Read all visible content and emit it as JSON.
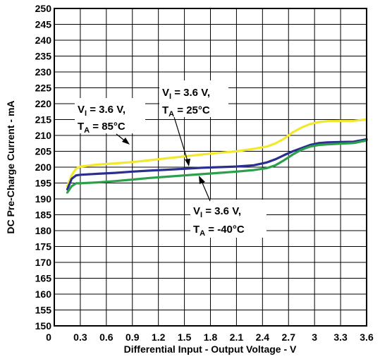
{
  "chart_data": {
    "type": "line",
    "title": "",
    "xlabel": "Differential Input - Output Voltage - V",
    "ylabel": "DC Pre-Charge Current - mA",
    "xlim": [
      0,
      3.6
    ],
    "ylim": [
      150,
      250
    ],
    "x_ticks": [
      "0",
      "0.3",
      "0.6",
      "0.9",
      "1.2",
      "1.5",
      "1.8",
      "2.1",
      "2.4",
      "2.7",
      "3",
      "3.3",
      "3.6"
    ],
    "y_ticks": [
      "250",
      "245",
      "240",
      "235",
      "230",
      "225",
      "220",
      "215",
      "210",
      "205",
      "200",
      "195",
      "190",
      "185",
      "180",
      "175",
      "170",
      "165",
      "160",
      "155",
      "150"
    ],
    "grid": true,
    "legend": "none",
    "series": [
      {
        "color": "#f2e82e",
        "x": [
          0.15,
          0.2,
          0.25,
          0.3,
          0.5,
          0.7,
          0.9,
          1.1,
          1.3,
          1.5,
          1.7,
          1.9,
          2.1,
          2.3,
          2.45,
          2.55,
          2.65,
          2.75,
          2.85,
          2.95,
          3.05,
          3.15,
          3.3,
          3.45,
          3.6
        ],
        "y": [
          194.0,
          197.5,
          199.5,
          200.2,
          200.8,
          201.2,
          201.6,
          202.2,
          202.8,
          203.4,
          204.0,
          204.5,
          205.0,
          205.8,
          206.5,
          207.5,
          209.0,
          211.0,
          212.5,
          213.6,
          214.2,
          214.5,
          214.6,
          214.6,
          215.0
        ]
      },
      {
        "color": "#2a2f8f",
        "x": [
          0.15,
          0.2,
          0.25,
          0.3,
          0.5,
          0.7,
          0.9,
          1.1,
          1.3,
          1.5,
          1.7,
          1.9,
          2.1,
          2.3,
          2.45,
          2.55,
          2.65,
          2.75,
          2.85,
          2.95,
          3.05,
          3.15,
          3.3,
          3.45,
          3.6
        ],
        "y": [
          193.0,
          196.3,
          197.4,
          197.6,
          197.9,
          198.2,
          198.6,
          198.9,
          199.2,
          199.5,
          199.8,
          200.0,
          200.2,
          200.6,
          201.5,
          202.5,
          203.8,
          205.0,
          206.0,
          207.0,
          207.6,
          207.8,
          207.9,
          208.0,
          208.8
        ]
      },
      {
        "color": "#2aa04a",
        "x": [
          0.15,
          0.2,
          0.25,
          0.3,
          0.5,
          0.7,
          0.9,
          1.1,
          1.3,
          1.5,
          1.7,
          1.9,
          2.1,
          2.3,
          2.45,
          2.55,
          2.65,
          2.75,
          2.85,
          2.95,
          3.05,
          3.15,
          3.3,
          3.45,
          3.6
        ],
        "y": [
          192.0,
          194.0,
          194.9,
          194.9,
          195.2,
          195.6,
          196.1,
          196.6,
          197.0,
          197.4,
          197.8,
          198.2,
          198.6,
          199.1,
          199.7,
          200.6,
          202.2,
          204.0,
          205.5,
          206.5,
          207.0,
          207.2,
          207.4,
          207.6,
          208.4
        ]
      }
    ],
    "annotations": [
      {
        "line1_main": "V",
        "line1_sub": "I",
        "line1_rest": " = 3.6 V,",
        "line2_main": "T",
        "line2_sub": "A",
        "line2_rest": " = 85°C"
      },
      {
        "line1_main": "V",
        "line1_sub": "I",
        "line1_rest": " = 3.6 V,",
        "line2_main": "T",
        "line2_sub": "A",
        "line2_rest": " = 25°C"
      },
      {
        "line1_main": "V",
        "line1_sub": "I",
        "line1_rest": " = 3.6 V,",
        "line2_main": "T",
        "line2_sub": "A",
        "line2_rest": " = -40°C"
      }
    ]
  }
}
